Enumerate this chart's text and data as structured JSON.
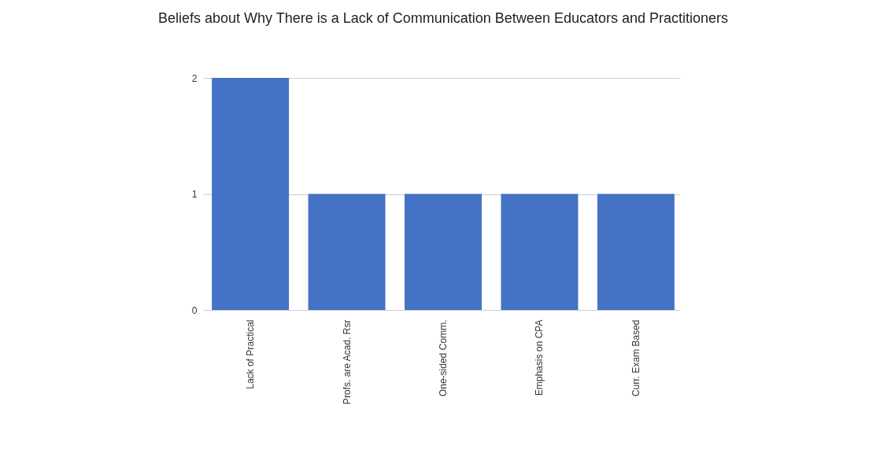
{
  "chart_data": {
    "type": "bar",
    "title": "Beliefs about Why There is a Lack of Communication Between Educators and Practitioners",
    "categories": [
      "Lack of Practical",
      "Profs. are Acad. Rsr",
      "One-sided Comm.",
      "Emphasis on CPA",
      "Curr. Exam Based"
    ],
    "values": [
      2,
      1,
      1,
      1,
      1
    ],
    "color": "#4472c4",
    "ylim": [
      0,
      2
    ],
    "yticks": [
      0,
      1,
      2
    ],
    "grid": "y"
  }
}
